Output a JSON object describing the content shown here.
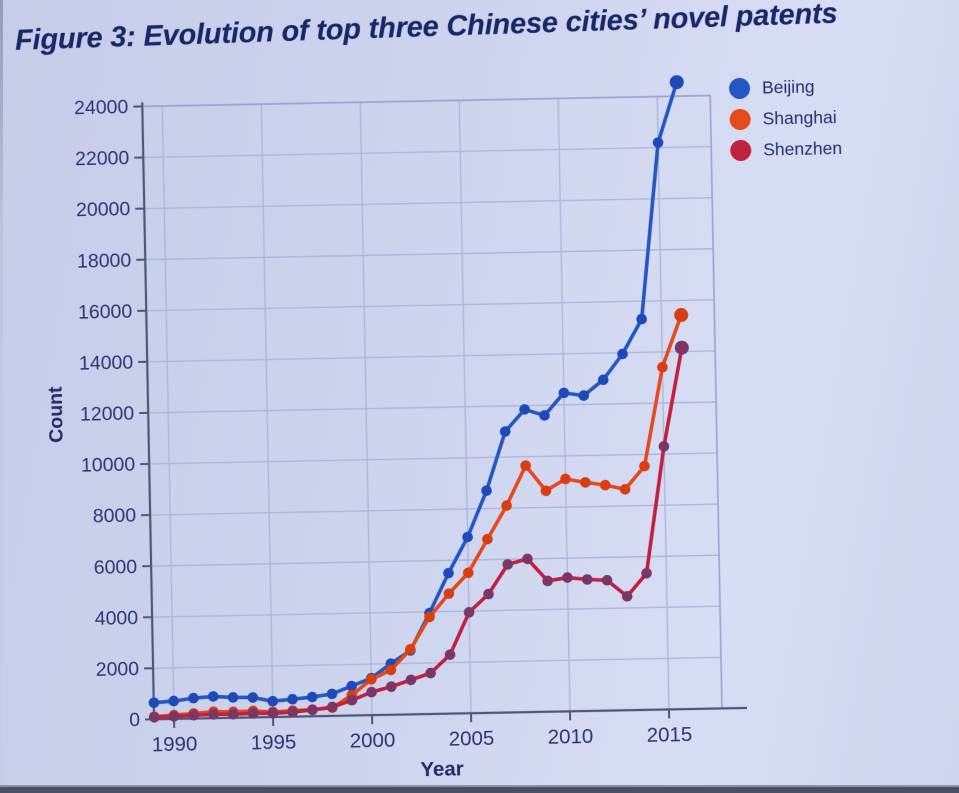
{
  "page": {
    "title": "Figure 3: Evolution of top three Chinese cities’ novel patents"
  },
  "chart_data": {
    "type": "line",
    "title": "Figure 3: Evolution of top three Chinese cities’ novel patents",
    "xlabel": "Year",
    "ylabel": "Count",
    "x_ticks": [
      1990,
      1995,
      2000,
      2005,
      2010,
      2015
    ],
    "y_ticks": [
      0,
      2000,
      4000,
      6000,
      8000,
      10000,
      12000,
      14000,
      16000,
      18000,
      20000,
      22000,
      24000
    ],
    "xlim": [
      1989,
      2017.6
    ],
    "ylim": [
      0,
      24000
    ],
    "grid": true,
    "legend_position": "top-right",
    "years": [
      1989,
      1990,
      1991,
      1992,
      1993,
      1994,
      1995,
      1996,
      1997,
      1998,
      1999,
      2000,
      2001,
      2002,
      2003,
      2004,
      2005,
      2006,
      2007,
      2008,
      2009,
      2010,
      2011,
      2012,
      2013,
      2014,
      2015,
      2016
    ],
    "series": [
      {
        "name": "Beijing",
        "color": "#2456c4",
        "marker_color": "#1d4ab8",
        "values": [
          650,
          700,
          800,
          850,
          800,
          780,
          620,
          680,
          750,
          860,
          1150,
          1450,
          2000,
          2500,
          3950,
          5500,
          6900,
          8700,
          11000,
          11850,
          11600,
          12470,
          12350,
          12950,
          13950,
          15300,
          22200,
          24550
        ]
      },
      {
        "name": "Shanghai",
        "color": "#e5491c",
        "marker_color": "#d93d12",
        "values": [
          100,
          150,
          200,
          250,
          230,
          250,
          200,
          230,
          260,
          320,
          800,
          1400,
          1750,
          2550,
          3800,
          4700,
          5500,
          6800,
          8100,
          9650,
          8650,
          9100,
          8950,
          8830,
          8650,
          9540,
          13400,
          15430
        ]
      },
      {
        "name": "Shenzhen",
        "color": "#c2203c",
        "marker_color": "#7d3566",
        "values": [
          80,
          100,
          130,
          150,
          140,
          160,
          150,
          180,
          250,
          350,
          600,
          900,
          1100,
          1350,
          1600,
          2310,
          3950,
          4650,
          5800,
          6000,
          5120,
          5240,
          5150,
          5100,
          4460,
          5350,
          10300,
          14150
        ]
      }
    ],
    "style": {
      "background": "#ccd3ed",
      "grid_color": "#aeb7da",
      "box_color": "#9aa4cc",
      "axis_color": "#4d5878",
      "tick_label_color": "#2b3672",
      "title_color": "#1b2668"
    }
  }
}
